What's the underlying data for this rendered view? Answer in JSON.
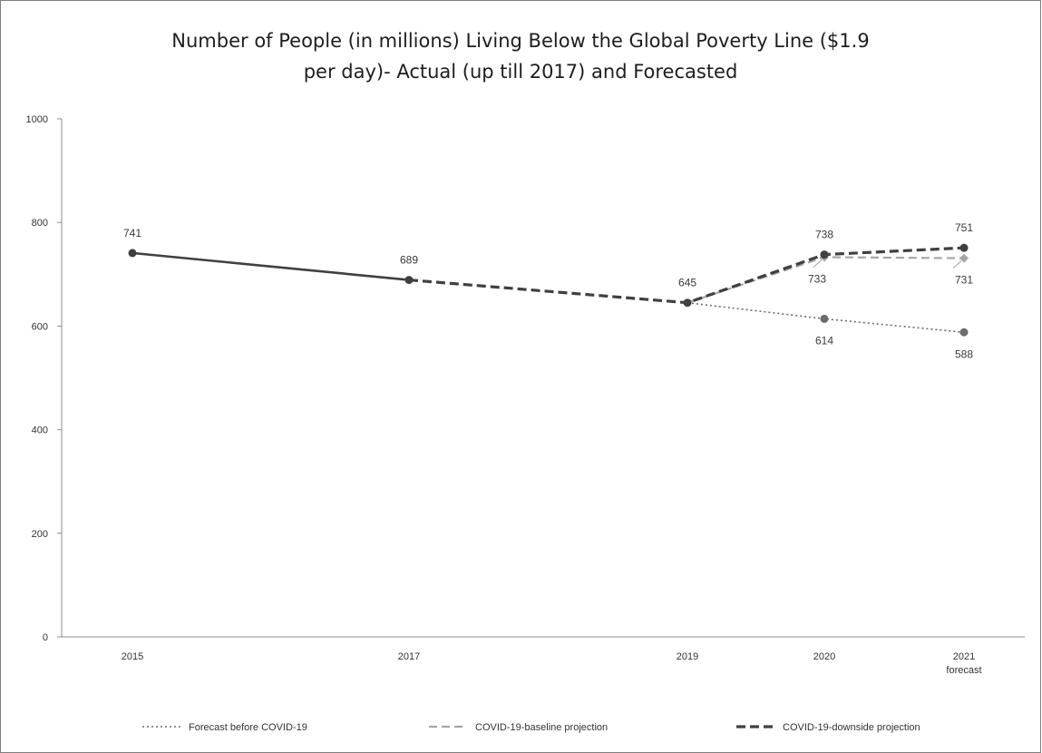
{
  "chart_data": {
    "type": "line",
    "title_line1": "Number of People (in millions) Living Below the Global Poverty Line ($1.9",
    "title_line2": "per day)- Actual (up till 2017) and Forecasted",
    "xlabel": "",
    "ylabel": "",
    "ylim": [
      0,
      1000
    ],
    "yticks": [
      0,
      200,
      400,
      600,
      800,
      1000
    ],
    "grid": false,
    "legend_position": "bottom",
    "categories": [
      "2015",
      "2017",
      "2019",
      "2020",
      "2021"
    ],
    "category_sublabels": [
      "",
      "",
      "",
      "",
      "forecast"
    ],
    "colors": {
      "actual": "#404040",
      "forecast_before": "#6b6b6b",
      "baseline": "#a6a6a6",
      "downside": "#404040"
    },
    "series": [
      {
        "key": "actual",
        "name": "",
        "style": "solid",
        "x": [
          "2015",
          "2017"
        ],
        "values": [
          741,
          689
        ]
      },
      {
        "key": "forecast_before",
        "name": "Forecast before COVID-19",
        "style": "dotted",
        "x": [
          "2019",
          "2020",
          "2021"
        ],
        "values": [
          645,
          614,
          588
        ]
      },
      {
        "key": "baseline",
        "name": "COVID-19-baseline projection",
        "style": "dashed",
        "x": [
          "2019",
          "2020",
          "2021"
        ],
        "values": [
          645,
          733,
          731
        ]
      },
      {
        "key": "downside",
        "name": "COVID-19-downside projection",
        "style": "dashed-bold",
        "x": [
          "2017",
          "2019",
          "2020",
          "2021"
        ],
        "values": [
          689,
          645,
          738,
          751
        ]
      }
    ],
    "data_labels": [
      {
        "x": "2015",
        "value": 741,
        "text": "741",
        "position": "above",
        "series": "actual"
      },
      {
        "x": "2017",
        "value": 689,
        "text": "689",
        "position": "above",
        "series": "actual"
      },
      {
        "x": "2019",
        "value": 645,
        "text": "645",
        "position": "above",
        "series": "downside"
      },
      {
        "x": "2020",
        "value": 738,
        "text": "738",
        "position": "above",
        "series": "downside"
      },
      {
        "x": "2020",
        "value": 733,
        "text": "733",
        "position": "below",
        "series": "baseline"
      },
      {
        "x": "2020",
        "value": 614,
        "text": "614",
        "position": "below",
        "series": "forecast_before"
      },
      {
        "x": "2021",
        "value": 751,
        "text": "751",
        "position": "above",
        "series": "downside"
      },
      {
        "x": "2021",
        "value": 731,
        "text": "731",
        "position": "below",
        "series": "baseline"
      },
      {
        "x": "2021",
        "value": 588,
        "text": "588",
        "position": "below",
        "series": "forecast_before"
      }
    ]
  }
}
